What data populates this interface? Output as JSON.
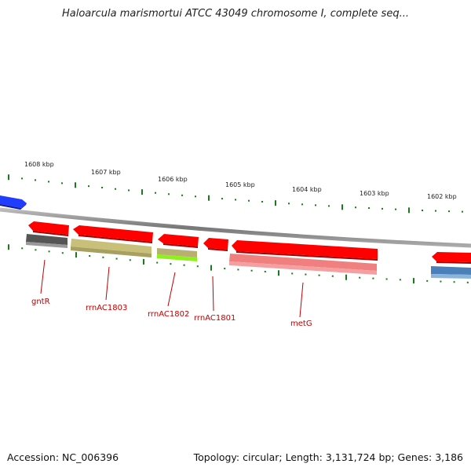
{
  "title": "Haloarcula marismortui ATCC 43049 chromosome I, complete seq...",
  "footer": {
    "accession": "Accession: NC_006396",
    "summary": "Topology: circular; Length: 3,131,724 bp; Genes: 3,186"
  },
  "ruler_labels": [
    "1608 kbp",
    "1607 kbp",
    "1606 kbp",
    "1605 kbp",
    "1604 kbp",
    "1603 kbp",
    "1602 kbp"
  ],
  "gene_labels": [
    "gntR",
    "rrnAC1803",
    "rrnAC1802",
    "rrnAC1801",
    "metG"
  ],
  "colors": {
    "cds": "#ff0000",
    "backbone": "#888888",
    "blue_feature": "#1f3cff",
    "tick": "#1a7a1a",
    "label": "#c00000",
    "gntR_homolog": "#555555",
    "rrnAC1803_homolog": "#c8c078",
    "rrnAC1802_homolog_a": "#b8b070",
    "rrnAC1802_homolog_b": "#8ef01c",
    "metG_homolog": "#f08080",
    "right_homolog": "#4a7fb8"
  }
}
